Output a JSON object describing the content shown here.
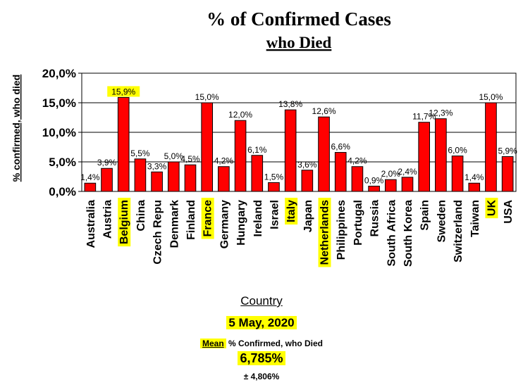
{
  "chart_data": {
    "type": "bar",
    "title": "% of Confirmed Cases",
    "subtitle": "who Died",
    "ylabel": "% confirmed, who died",
    "xlabel": "Country",
    "ylim": [
      0,
      20
    ],
    "yticks": [
      "0,0%",
      "5,0%",
      "10,0%",
      "15,0%",
      "20,0%"
    ],
    "grid": "horizontal",
    "bar_color": "#ff0000",
    "highlight_color": "#ffff00",
    "categories": [
      "Australia",
      "Austria",
      "Belgium",
      "China",
      "Czech Repu",
      "Denmark",
      "Finland",
      "France",
      "Germany",
      "Hungary",
      "Ireland",
      "Israel",
      "Italy",
      "Japan",
      "Netherlands",
      "Philippines",
      "Portugal",
      "Russia",
      "South Africa",
      "South Korea",
      "Spain",
      "Sweden",
      "Switzerland",
      "Taiwan",
      "UK",
      "USA"
    ],
    "values": [
      1.4,
      3.9,
      15.9,
      5.5,
      3.3,
      5.0,
      4.5,
      15.0,
      4.2,
      12.0,
      6.1,
      1.5,
      13.8,
      3.6,
      12.6,
      6.6,
      4.2,
      0.9,
      2.0,
      2.4,
      11.7,
      12.3,
      6.0,
      1.4,
      15.0,
      5.9
    ],
    "value_labels": [
      "1,4%",
      "3,9%",
      "15,9%",
      "5,5%",
      "3,3%",
      "5,0%",
      "4,5%",
      "15,0%",
      "4,2%",
      "12,0%",
      "6,1%",
      "1,5%",
      "13,8%",
      "3,6%",
      "12,6%",
      "6,6%",
      "4,2%",
      "0,9%",
      "2,0%",
      "2,4%",
      "11,7%",
      "12,3%",
      "6,0%",
      "1,4%",
      "15,0%",
      "5,9%"
    ],
    "highlighted": [
      "Belgium",
      "France",
      "Italy",
      "Netherlands",
      "UK"
    ]
  },
  "footer": {
    "date": "5 May, 2020",
    "mean_word": "Mean",
    "mean_rest": " % Confirmed, who Died",
    "mean_value": "6,785%",
    "sd": "± 4,806%"
  }
}
